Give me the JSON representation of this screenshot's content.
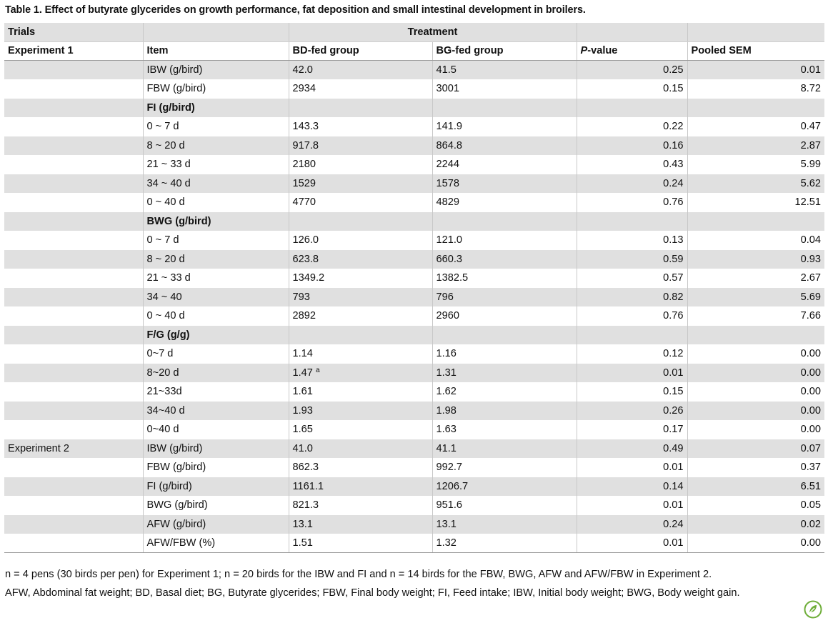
{
  "caption": "Table 1.  Effect of butyrate glycerides on growth performance, fat deposition and small intestinal development in broilers.",
  "header1": {
    "trials": "Trials",
    "treatment": "Treatment"
  },
  "header2": {
    "experiment": "Experiment 1",
    "item": "Item",
    "bd": "BD-fed group",
    "bg": "BG-fed group",
    "p_letter": "P",
    "p_suffix": "-value",
    "sem": "Pooled SEM"
  },
  "rows": [
    {
      "trial": "",
      "item": "IBW (g/bird)",
      "bd": "42.0",
      "bg": "41.5",
      "p": "0.25",
      "sem": "0.01"
    },
    {
      "trial": "",
      "item": "FBW (g/bird)",
      "bd": "2934",
      "bg": "3001",
      "p": "0.15",
      "sem": "8.72"
    },
    {
      "trial": "",
      "item": "FI (g/bird)",
      "bd": "",
      "bg": "",
      "p": "",
      "sem": ""
    },
    {
      "trial": "",
      "item": "0 ~ 7 d",
      "bd": "143.3",
      "bg": "141.9",
      "p": "0.22",
      "sem": "0.47"
    },
    {
      "trial": "",
      "item": "8 ~ 20 d",
      "bd": "917.8",
      "bg": "864.8",
      "p": "0.16",
      "sem": "2.87"
    },
    {
      "trial": "",
      "item": "21 ~ 33 d",
      "bd": "2180",
      "bg": "2244",
      "p": "0.43",
      "sem": "5.99"
    },
    {
      "trial": "",
      "item": "34 ~ 40 d",
      "bd": "1529",
      "bg": "1578",
      "p": "0.24",
      "sem": "5.62"
    },
    {
      "trial": "",
      "item": "0 ~ 40 d",
      "bd": "4770",
      "bg": "4829",
      "p": "0.76",
      "sem": "12.51"
    },
    {
      "trial": "",
      "item": "BWG (g/bird)",
      "bd": "",
      "bg": "",
      "p": "",
      "sem": ""
    },
    {
      "trial": "",
      "item": "0 ~ 7 d",
      "bd": "126.0",
      "bg": "121.0",
      "p": "0.13",
      "sem": "0.04"
    },
    {
      "trial": "",
      "item": "8 ~ 20 d",
      "bd": "623.8",
      "bg": "660.3",
      "p": "0.59",
      "sem": "0.93"
    },
    {
      "trial": "",
      "item": "21 ~ 33 d",
      "bd": "1349.2",
      "bg": "1382.5",
      "p": "0.57",
      "sem": "2.67"
    },
    {
      "trial": "",
      "item": "34 ~ 40",
      "bd": "793",
      "bg": "796",
      "p": "0.82",
      "sem": "5.69"
    },
    {
      "trial": "",
      "item": "0 ~ 40 d",
      "bd": "2892",
      "bg": "2960",
      "p": "0.76",
      "sem": "7.66"
    },
    {
      "trial": "",
      "item": "F/G (g/g)",
      "bd": "",
      "bg": "",
      "p": "",
      "sem": ""
    },
    {
      "trial": "",
      "item": "0~7 d",
      "bd": "1.14",
      "bg": "1.16",
      "p": "0.12",
      "sem": "0.00"
    },
    {
      "trial": "",
      "item": "8~20 d",
      "bd": "1.47",
      "bd_sup": "a",
      "bg": "1.31",
      "p": "0.01",
      "sem": "0.00"
    },
    {
      "trial": "",
      "item": "21~33d",
      "bd": "1.61",
      "bg": "1.62",
      "p": "0.15",
      "sem": "0.00"
    },
    {
      "trial": "",
      "item": "34~40 d",
      "bd": "1.93",
      "bg": "1.98",
      "p": "0.26",
      "sem": "0.00"
    },
    {
      "trial": "",
      "item": "0~40 d",
      "bd": "1.65",
      "bg": "1.63",
      "p": "0.17",
      "sem": "0.00"
    },
    {
      "trial": "Experiment 2",
      "item": "IBW (g/bird)",
      "bd": "41.0",
      "bg": "41.1",
      "p": "0.49",
      "sem": "0.07"
    },
    {
      "trial": "",
      "item": "FBW (g/bird)",
      "bd": "862.3",
      "bg": "992.7",
      "p": "0.01",
      "sem": "0.37"
    },
    {
      "trial": "",
      "item": "FI (g/bird)",
      "bd": "1161.1",
      "bg": "1206.7",
      "p": "0.14",
      "sem": "6.51"
    },
    {
      "trial": "",
      "item": "BWG (g/bird)",
      "bd": "821.3",
      "bg": "951.6",
      "p": "0.01",
      "sem": "0.05"
    },
    {
      "trial": "",
      "item": "AFW (g/bird)",
      "bd": "13.1",
      "bg": "13.1",
      "p": "0.24",
      "sem": "0.02"
    },
    {
      "trial": "",
      "item": "AFW/FBW (%)",
      "bd": "1.51",
      "bg": "1.32",
      "p": "0.01",
      "sem": "0.00"
    }
  ],
  "footnotes": {
    "line1": "n = 4 pens (30 birds per pen) for Experiment 1; n = 20 birds for the IBW and FI and n = 14 birds for the FBW, BWG, AFW and AFW/FBW in Experiment 2.",
    "line2": "AFW, Abdominal fat weight; BD, Basal diet; BG, Butyrate glycerides; FBW, Final body weight; FI, Feed intake; IBW, Initial body weight; BWG, Body weight gain."
  },
  "colors": {
    "stripe": "#e0e0e0",
    "icon": "#6fae3a"
  },
  "icons": {
    "corner": "plos-logo-icon"
  }
}
